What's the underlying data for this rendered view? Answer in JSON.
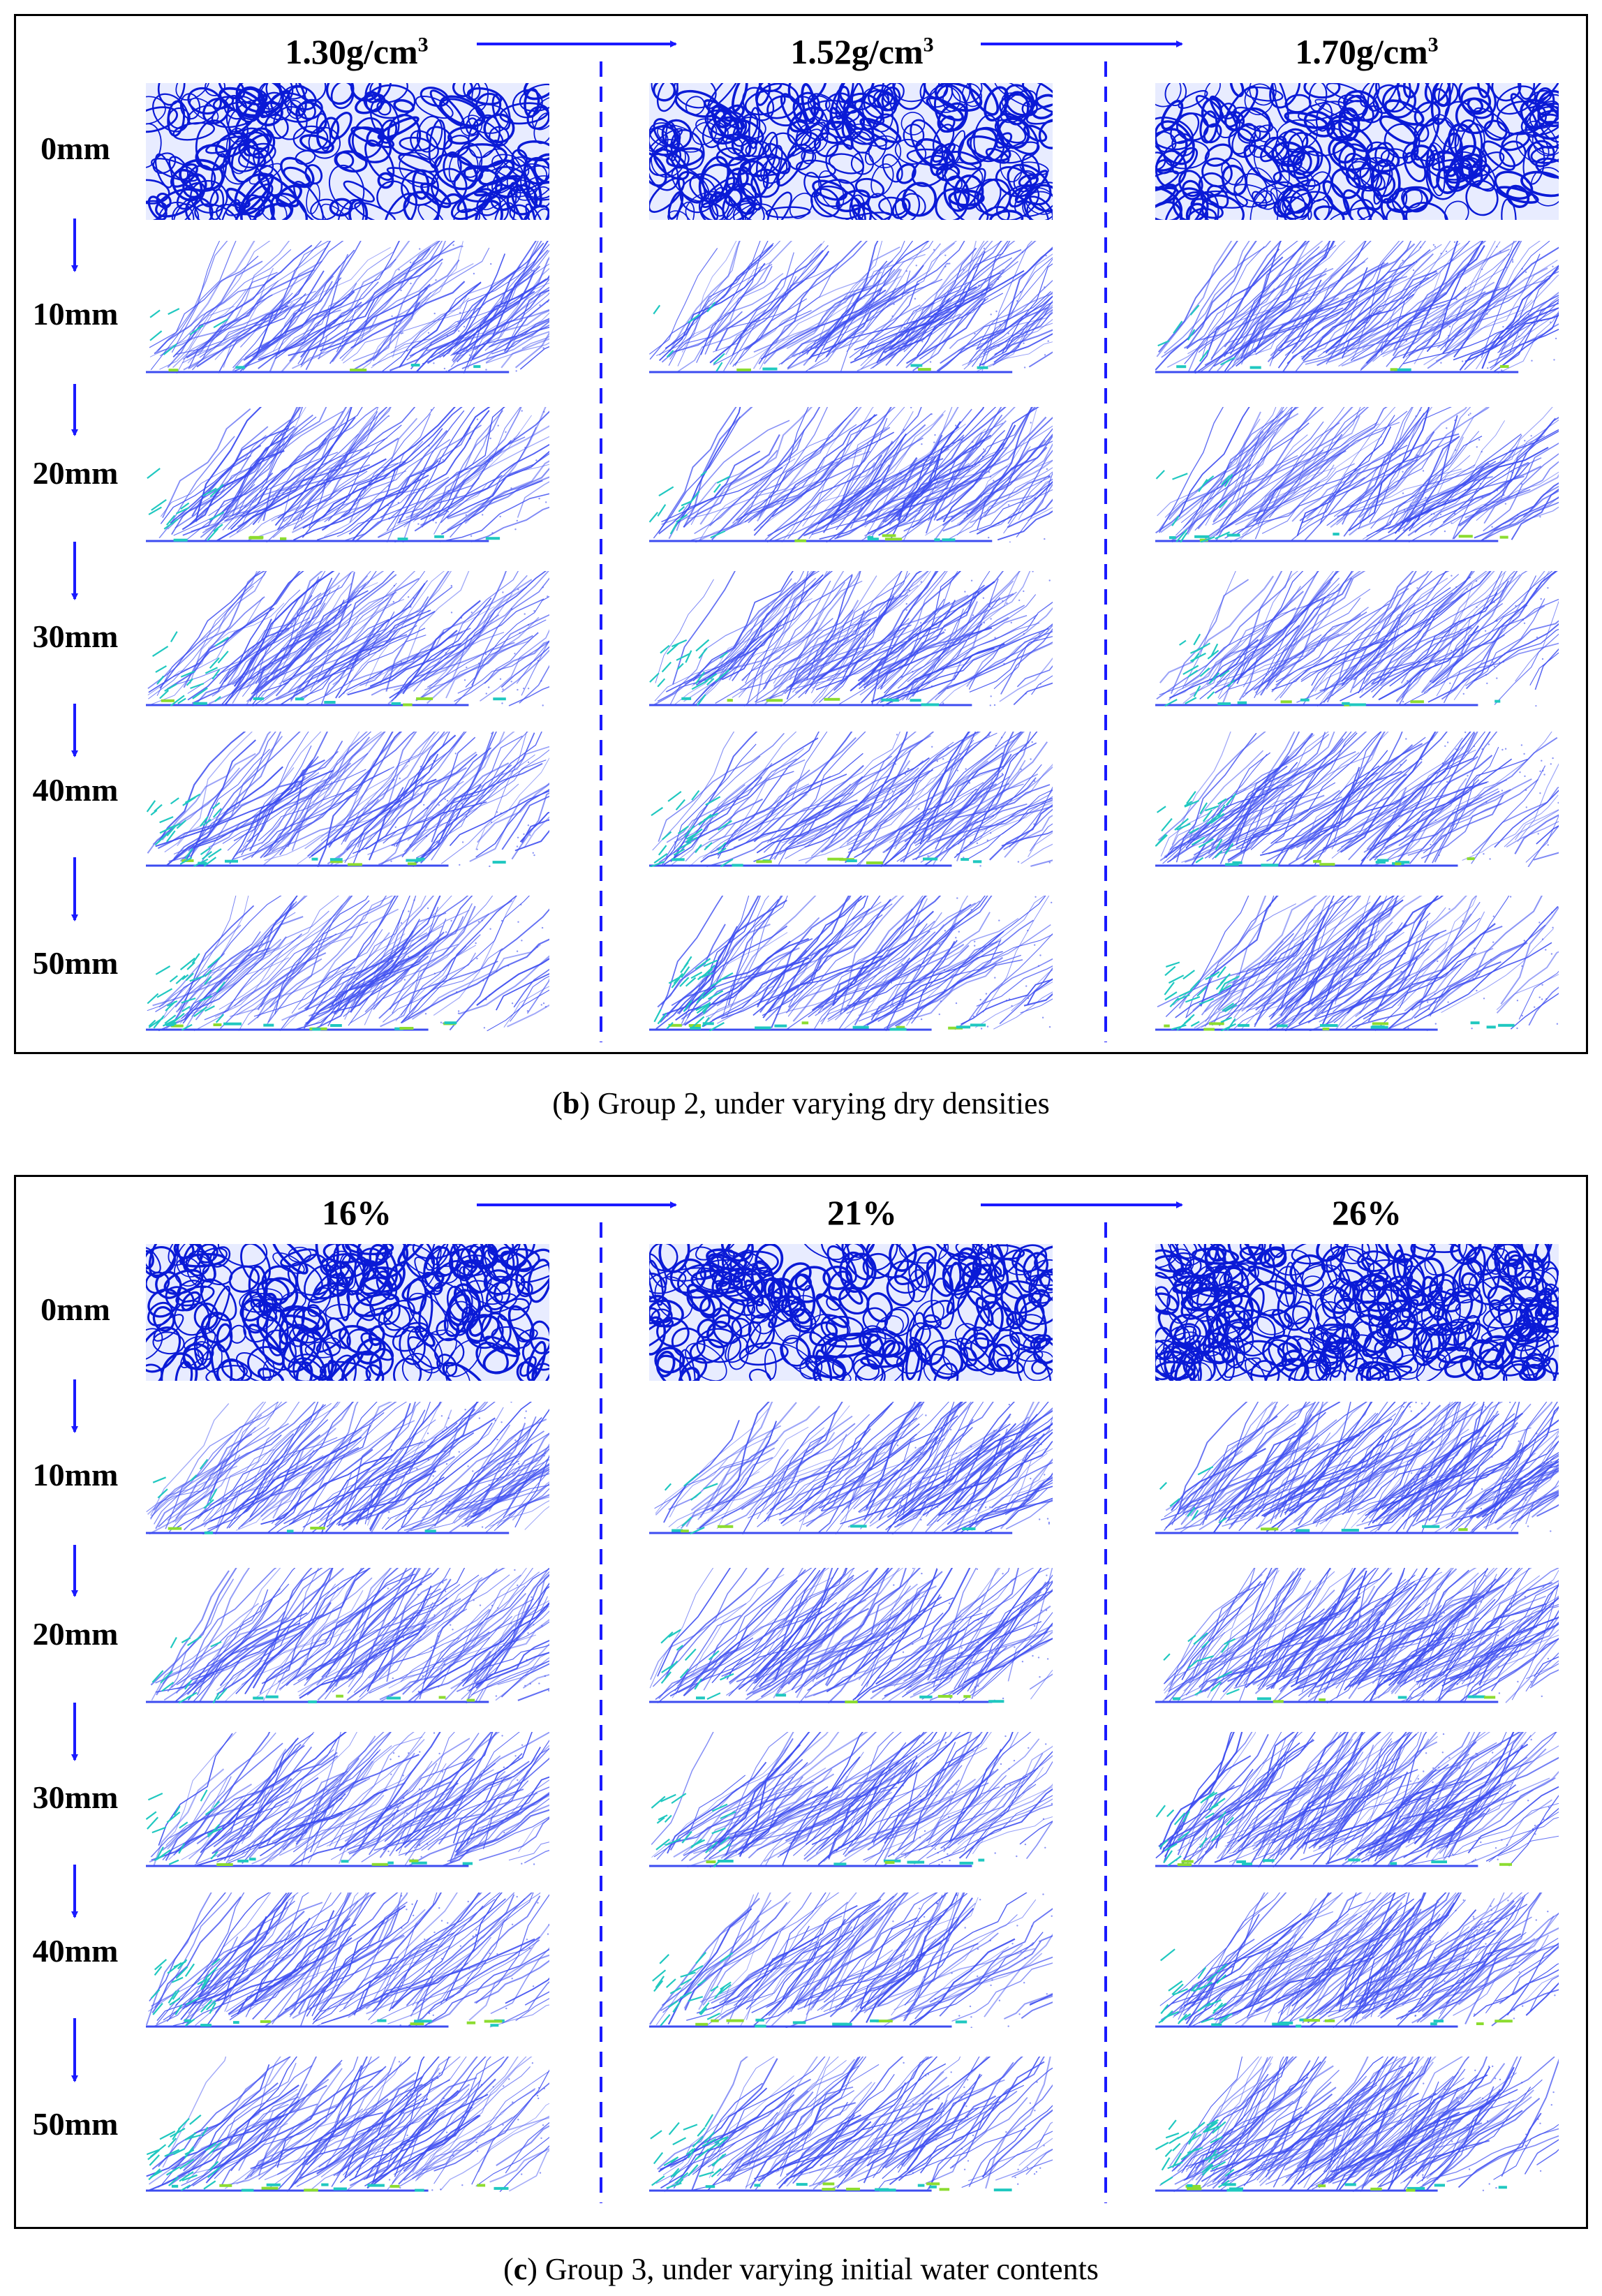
{
  "panel_b": {
    "columns": [
      {
        "value": "1.30g/cm",
        "sup": "3"
      },
      {
        "value": "1.52g/cm",
        "sup": "3"
      },
      {
        "value": "1.70g/cm",
        "sup": "3"
      }
    ],
    "rows": [
      "0mm",
      "10mm",
      "20mm",
      "30mm",
      "40mm",
      "50mm"
    ],
    "caption_letter": "b",
    "caption_text": " Group 2, under varying dry densities"
  },
  "panel_c": {
    "columns": [
      {
        "value": "16%",
        "sup": ""
      },
      {
        "value": "21%",
        "sup": ""
      },
      {
        "value": "26%",
        "sup": ""
      }
    ],
    "rows": [
      "0mm",
      "10mm",
      "20mm",
      "30mm",
      "40mm",
      "50mm"
    ],
    "caption_letter": "c",
    "caption_text": " Group 3, under varying initial water contents"
  },
  "colors": {
    "frame": "#000000",
    "arrow": "#1a1aff",
    "dashed": "#1a1aff",
    "dense_network": "#0a1ad6",
    "sparse_network": "#3c4cf0",
    "stress_high": "#20c8c0",
    "stress_peak": "#8cdc30"
  }
}
